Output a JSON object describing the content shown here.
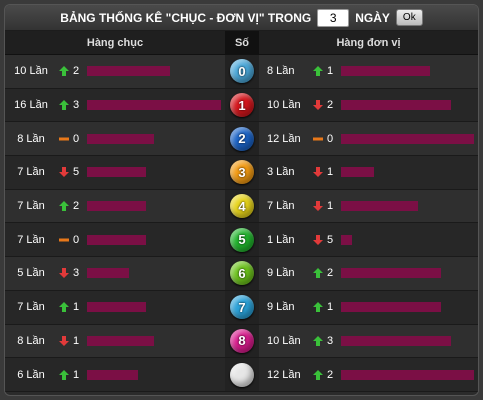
{
  "title": {
    "prefix": "BẢNG THỐNG KÊ \"CHỤC - ĐƠN VỊ\" TRONG",
    "days_value": "3",
    "suffix": "NGÀY",
    "ok_label": "Ok"
  },
  "header": {
    "tens": "Hàng chục",
    "number": "Số",
    "units": "Hàng đơn vị"
  },
  "colors": {
    "bar": "#7b0f45",
    "up": "#3ac13a",
    "down": "#e23a3a",
    "same": "#e8781a"
  },
  "rows": [
    {
      "digit": "0",
      "ball_color": "#4aa7d8",
      "tens": {
        "count": "10 Lần",
        "trend": "up",
        "delta": "2",
        "bar": 0.62
      },
      "units": {
        "count": "8 Lần",
        "trend": "up",
        "delta": "1",
        "bar": 0.67
      }
    },
    {
      "digit": "1",
      "ball_color": "#d4161c",
      "tens": {
        "count": "16 Lần",
        "trend": "up",
        "delta": "3",
        "bar": 1.0
      },
      "units": {
        "count": "10 Lần",
        "trend": "down",
        "delta": "2",
        "bar": 0.83
      }
    },
    {
      "digit": "2",
      "ball_color": "#1b63c6",
      "tens": {
        "count": "8 Lần",
        "trend": "same",
        "delta": "0",
        "bar": 0.5
      },
      "units": {
        "count": "12 Lần",
        "trend": "same",
        "delta": "0",
        "bar": 1.0
      }
    },
    {
      "digit": "3",
      "ball_color": "#f29a12",
      "tens": {
        "count": "7 Lần",
        "trend": "down",
        "delta": "5",
        "bar": 0.44
      },
      "units": {
        "count": "3 Lần",
        "trend": "down",
        "delta": "1",
        "bar": 0.25
      }
    },
    {
      "digit": "4",
      "ball_color": "#e6d31a",
      "tens": {
        "count": "7 Lần",
        "trend": "up",
        "delta": "2",
        "bar": 0.44
      },
      "units": {
        "count": "7 Lần",
        "trend": "down",
        "delta": "1",
        "bar": 0.58
      }
    },
    {
      "digit": "5",
      "ball_color": "#20b32c",
      "tens": {
        "count": "7 Lần",
        "trend": "same",
        "delta": "0",
        "bar": 0.44
      },
      "units": {
        "count": "1 Lần",
        "trend": "down",
        "delta": "5",
        "bar": 0.08
      }
    },
    {
      "digit": "6",
      "ball_color": "#6cc21c",
      "tens": {
        "count": "5 Lần",
        "trend": "down",
        "delta": "3",
        "bar": 0.31
      },
      "units": {
        "count": "9 Lần",
        "trend": "up",
        "delta": "2",
        "bar": 0.75
      }
    },
    {
      "digit": "7",
      "ball_color": "#2aa1d8",
      "tens": {
        "count": "7 Lần",
        "trend": "up",
        "delta": "1",
        "bar": 0.44
      },
      "units": {
        "count": "9 Lần",
        "trend": "up",
        "delta": "1",
        "bar": 0.75
      }
    },
    {
      "digit": "8",
      "ball_color": "#d81b8c",
      "tens": {
        "count": "8 Lần",
        "trend": "down",
        "delta": "1",
        "bar": 0.5
      },
      "units": {
        "count": "10 Lần",
        "trend": "up",
        "delta": "3",
        "bar": 0.83
      }
    },
    {
      "digit": "",
      "ball_color": "#e6e6e6",
      "tens": {
        "count": "6 Lần",
        "trend": "up",
        "delta": "1",
        "bar": 0.38
      },
      "units": {
        "count": "12 Lần",
        "trend": "up",
        "delta": "2",
        "bar": 1.0
      }
    }
  ]
}
